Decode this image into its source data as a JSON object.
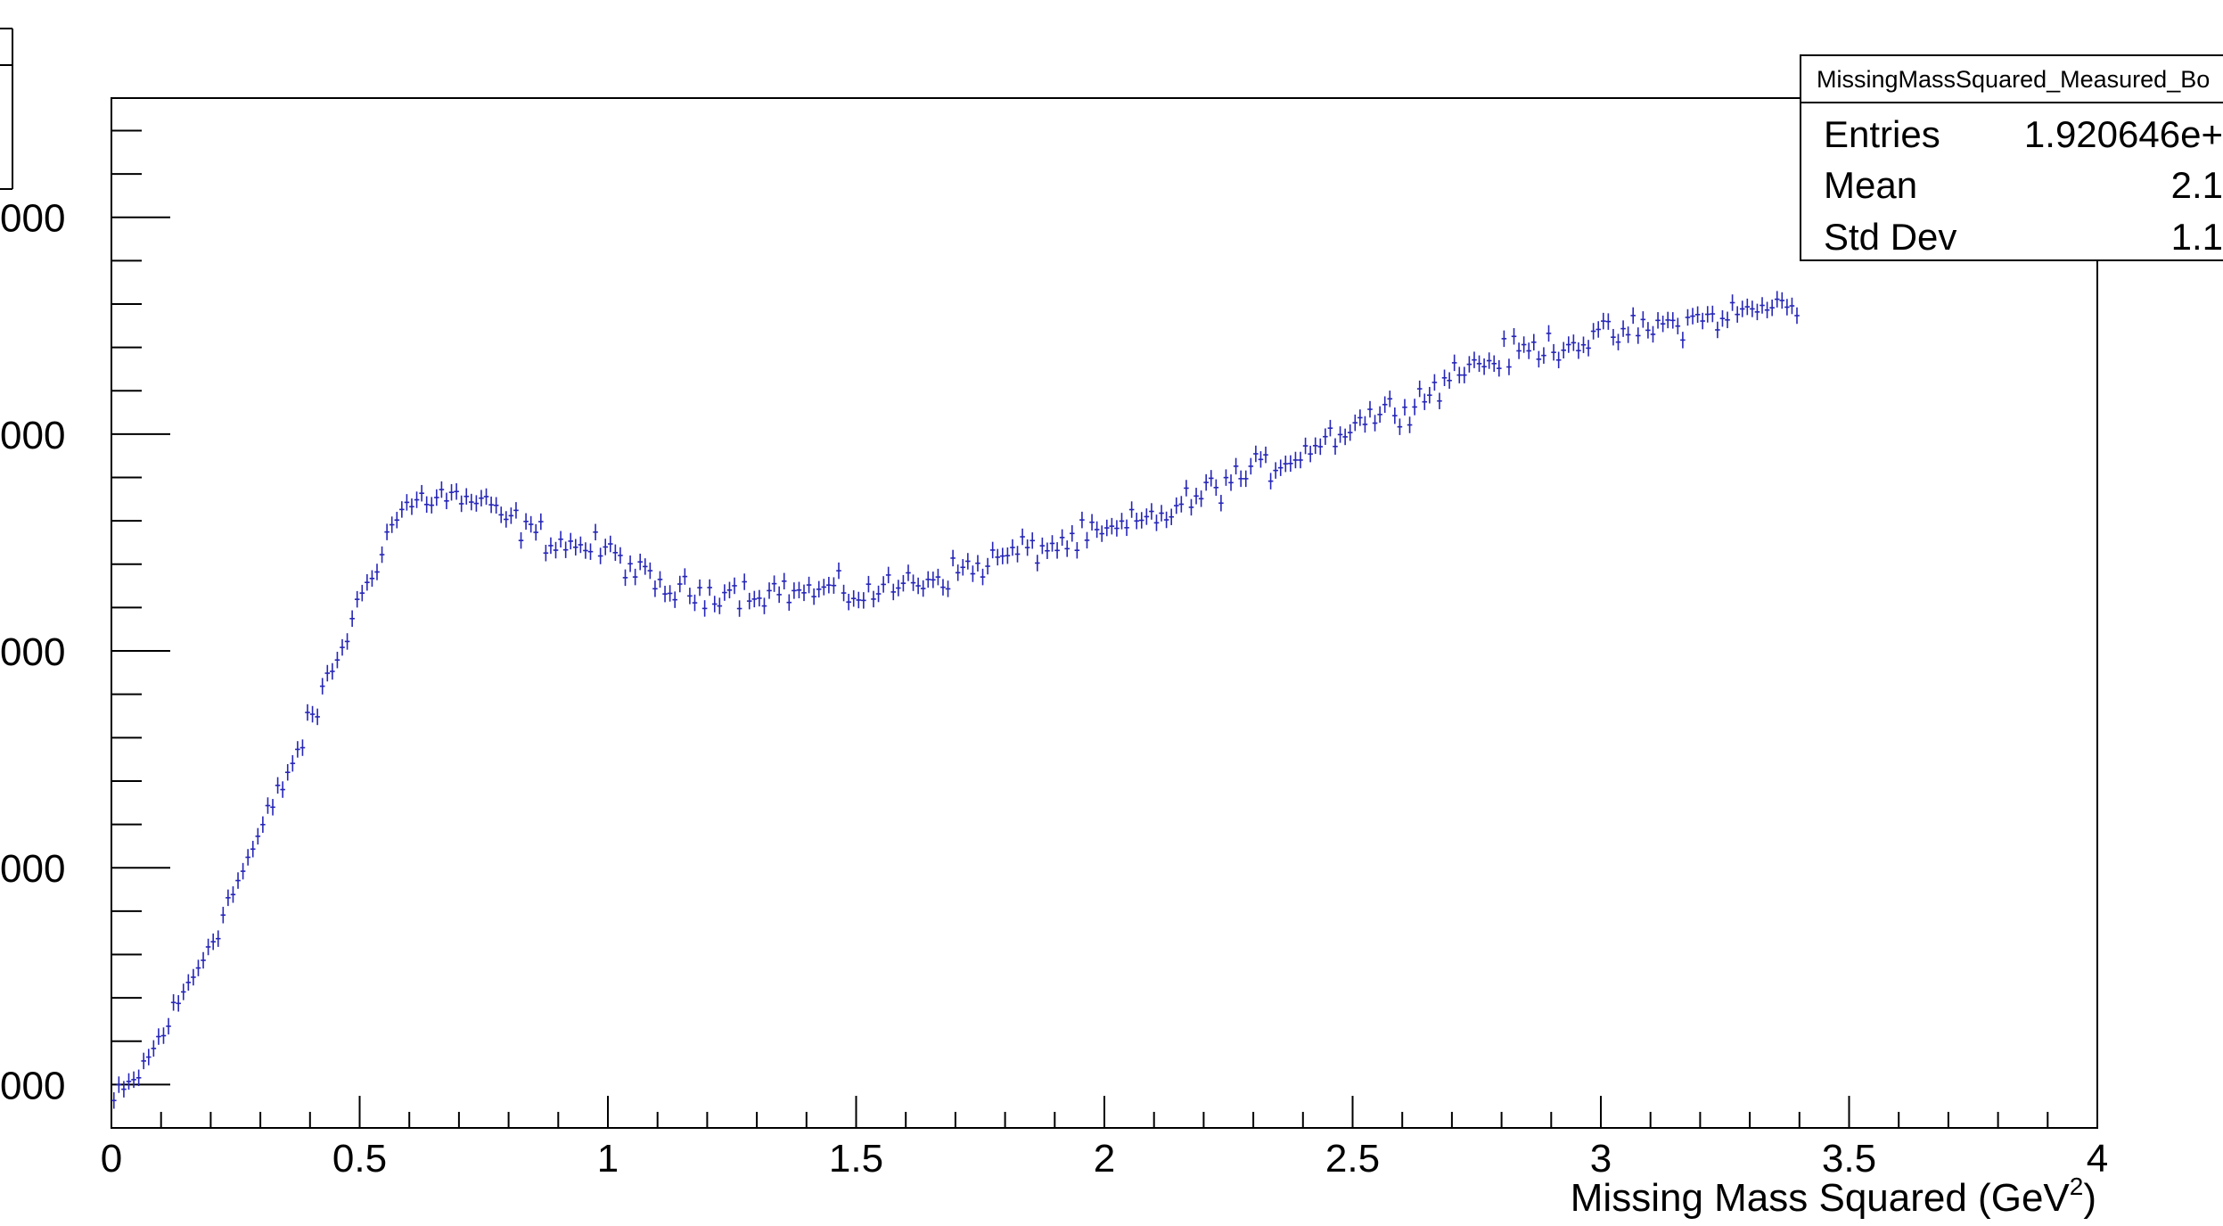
{
  "chart_data": {
    "type": "scatter",
    "title": "",
    "xlabel": "Missing Mass Squared (GeV",
    "xlabel_sup": "2",
    "xlabel_suffix": ")",
    "ylabel": "",
    "xlim": [
      0,
      4
    ],
    "ylim": [
      800,
      5550
    ],
    "x_ticks": [
      "0",
      "0.5",
      "1",
      "1.5",
      "2",
      "2.5",
      "3",
      "3.5",
      "4"
    ],
    "y_ticks": [
      {
        "value": 5000,
        "label": "000"
      },
      {
        "value": 4000,
        "label": "000"
      },
      {
        "value": 3000,
        "label": "000"
      },
      {
        "value": 2000,
        "label": "000"
      },
      {
        "value": 1000,
        "label": "000"
      }
    ],
    "marker_color": "#2626b8",
    "series_summary": {
      "bin_width": 0.01,
      "x_range": [
        0.005,
        3.395
      ],
      "description": "histogram points with error bars"
    },
    "x": [
      0.005,
      0.03,
      0.055,
      0.08,
      0.105,
      0.13,
      0.155,
      0.18,
      0.205,
      0.23,
      0.255,
      0.28,
      0.305,
      0.33,
      0.355,
      0.38,
      0.405,
      0.43,
      0.455,
      0.48,
      0.505,
      0.53,
      0.555,
      0.58,
      0.605,
      0.63,
      0.655,
      0.68,
      0.705,
      0.73,
      0.755,
      0.78,
      0.805,
      0.83,
      0.855,
      0.88,
      0.905,
      0.93,
      0.955,
      0.98,
      1.005,
      1.03,
      1.055,
      1.08,
      1.105,
      1.13,
      1.155,
      1.18,
      1.205,
      1.23,
      1.255,
      1.28,
      1.305,
      1.33,
      1.355,
      1.38,
      1.405,
      1.43,
      1.455,
      1.48,
      1.505,
      1.53,
      1.555,
      1.58,
      1.605,
      1.63,
      1.655,
      1.68,
      1.705,
      1.73,
      1.755,
      1.78,
      1.805,
      1.83,
      1.855,
      1.88,
      1.905,
      1.93,
      1.955,
      1.98,
      2.005,
      2.03,
      2.055,
      2.08,
      2.105,
      2.13,
      2.155,
      2.18,
      2.205,
      2.23,
      2.255,
      2.28,
      2.305,
      2.33,
      2.355,
      2.38,
      2.405,
      2.43,
      2.455,
      2.48,
      2.505,
      2.53,
      2.555,
      2.58,
      2.605,
      2.63,
      2.655,
      2.68,
      2.705,
      2.73,
      2.755,
      2.78,
      2.805,
      2.83,
      2.855,
      2.88,
      2.905,
      2.93,
      2.955,
      2.98,
      3.005,
      3.03,
      3.055,
      3.08,
      3.105,
      3.13,
      3.155,
      3.18,
      3.205,
      3.23,
      3.255,
      3.28,
      3.305,
      3.33,
      3.355,
      3.38
    ],
    "y": [
      920,
      970,
      1050,
      1140,
      1250,
      1350,
      1460,
      1570,
      1690,
      1810,
      1940,
      2060,
      2180,
      2310,
      2440,
      2560,
      2690,
      2830,
      2970,
      3110,
      3260,
      3400,
      3530,
      3640,
      3680,
      3700,
      3720,
      3710,
      3700,
      3690,
      3660,
      3630,
      3600,
      3570,
      3540,
      3520,
      3500,
      3490,
      3480,
      3470,
      3450,
      3420,
      3370,
      3320,
      3290,
      3280,
      3270,
      3260,
      3270,
      3290,
      3280,
      3270,
      3270,
      3280,
      3280,
      3270,
      3270,
      3280,
      3280,
      3270,
      3260,
      3270,
      3280,
      3300,
      3320,
      3330,
      3340,
      3350,
      3370,
      3380,
      3400,
      3420,
      3440,
      3460,
      3470,
      3480,
      3490,
      3500,
      3520,
      3530,
      3540,
      3560,
      3580,
      3600,
      3620,
      3640,
      3670,
      3700,
      3730,
      3760,
      3790,
      3810,
      3830,
      3850,
      3870,
      3900,
      3930,
      3960,
      3990,
      4020,
      4050,
      4080,
      4100,
      4110,
      4130,
      4160,
      4200,
      4240,
      4280,
      4310,
      4330,
      4340,
      4360,
      4380,
      4390,
      4400,
      4410,
      4420,
      4430,
      4440,
      4450,
      4460,
      4470,
      4480,
      4490,
      4500,
      4510,
      4520,
      4530,
      4540,
      4550,
      4560,
      4570,
      4580,
      4590,
      4600
    ],
    "yerr": 38,
    "xerr": 0.005
  },
  "stats_box": {
    "title": "MissingMassSquared_Measured_Bo",
    "rows": [
      {
        "label": "Entries",
        "value": "1.920646e+"
      },
      {
        "label": "Mean",
        "value": "2.1"
      },
      {
        "label": "Std Dev",
        "value": "1.1"
      }
    ]
  }
}
